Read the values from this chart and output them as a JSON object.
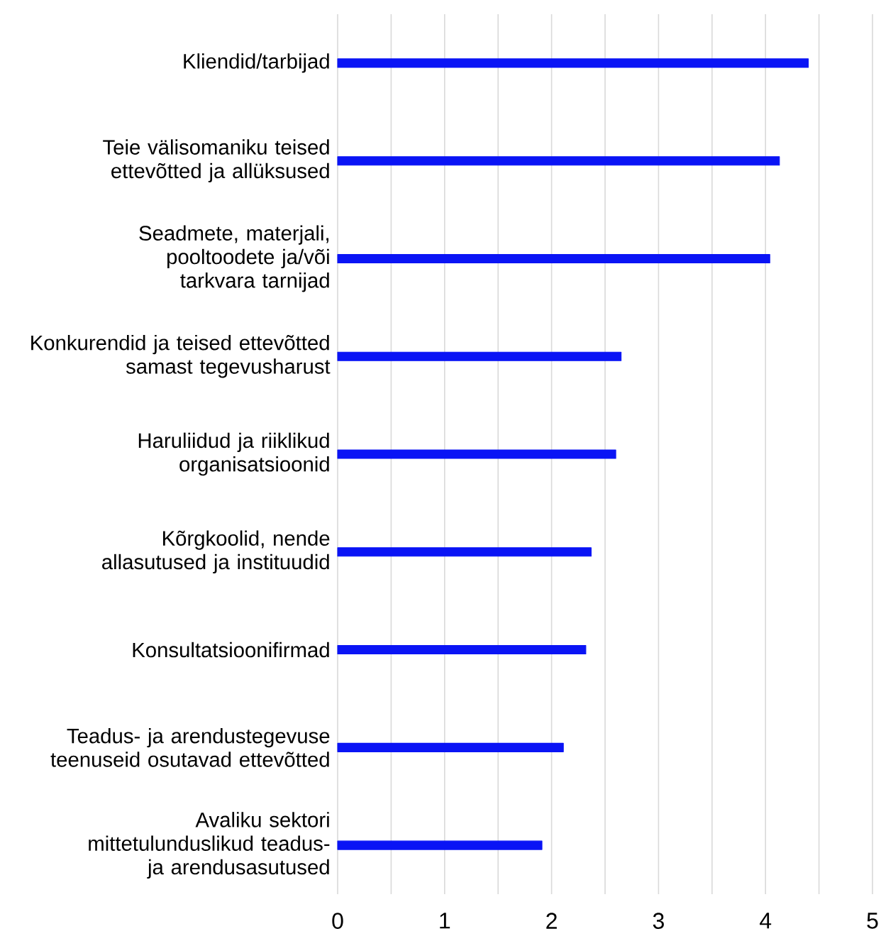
{
  "chart_data": {
    "type": "bar",
    "orientation": "horizontal",
    "categories": [
      "Kliendid/tarbijad",
      "Teie välisomaniku teised ettevõtted ja allüksused",
      "Seadmete, materjali, pooltoodete ja/või tarkvara tarnijad",
      "Konkurendid ja teised ettevõtted samast tegevusharust",
      "Haruliidud ja riiklikud organisatsioonid",
      "Kõrgkoolid, nende allasutused ja instituudid",
      "Konsultatsioonifirmad",
      "Teadus- ja arendustegevuse teenuseid osutavad ettevõtted",
      "Avaliku sektori mittetulunduslikud teadus- ja arendusasutused"
    ],
    "values": [
      4.4,
      4.13,
      4.04,
      2.65,
      2.6,
      2.37,
      2.32,
      2.11,
      1.91
    ],
    "color": "#0a14f5",
    "xlim": [
      0,
      5
    ],
    "xticks": [
      0,
      {
        "value": 0.5,
        "label": null
      },
      1,
      {
        "value": 1.5,
        "label": null
      },
      2,
      {
        "value": 2.5,
        "label": null
      },
      3,
      {
        "value": 3.5,
        "label": null
      },
      4,
      {
        "value": 4.5,
        "label": null
      },
      5
    ],
    "grid": "x"
  }
}
